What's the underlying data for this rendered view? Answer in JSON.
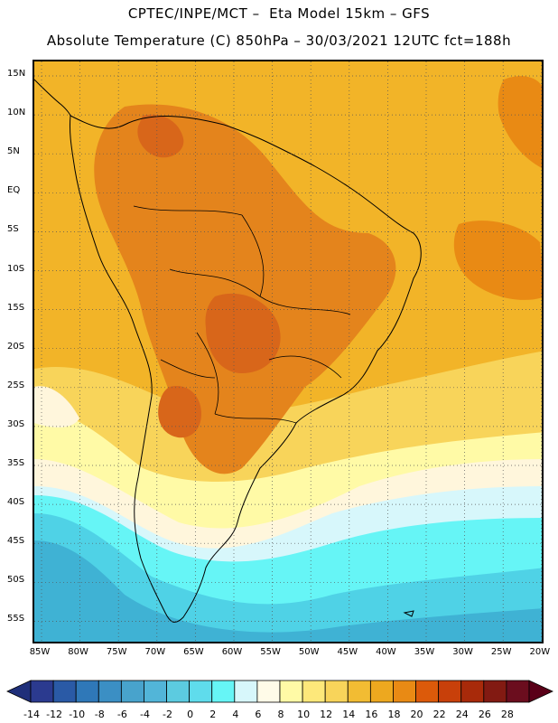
{
  "title_line1": "CPTEC/INPE/MCT –  Eta Model 15km – GFS",
  "title_line2": "Absolute Temperature (C) 850hPa – 30/03/2021 12UTC fct=188h",
  "lat_labels": [
    "15N",
    "10N",
    "5N",
    "EQ",
    "5S",
    "10S",
    "15S",
    "20S",
    "25S",
    "30S",
    "35S",
    "40S",
    "45S",
    "50S",
    "55S"
  ],
  "lon_labels": [
    "85W",
    "80W",
    "75W",
    "70W",
    "65W",
    "60W",
    "55W",
    "50W",
    "45W",
    "40W",
    "35W",
    "30W",
    "25W",
    "20W"
  ],
  "colorbar": {
    "ticks": [
      "-14",
      "-12",
      "-10",
      "-8",
      "-6",
      "-4",
      "-2",
      "0",
      "2",
      "4",
      "6",
      "8",
      "10",
      "12",
      "14",
      "16",
      "18",
      "20",
      "22",
      "24",
      "26",
      "28"
    ],
    "colors": [
      "#2b3a8f",
      "#2a5aa6",
      "#2f78b8",
      "#3b8fc4",
      "#48a3cc",
      "#52b5d8",
      "#5ccbe0",
      "#5fdcec",
      "#66f5f6",
      "#d7f7fb",
      "#fffbe8",
      "#fffaa6",
      "#fde87a",
      "#f8d45a",
      "#f2bc33",
      "#eda81f",
      "#e98a14",
      "#dc5a0a",
      "#c8400a",
      "#a82a0a",
      "#821a12",
      "#6b0d1e"
    ],
    "under_color": "#1f2f7a",
    "over_color": "#5a0018"
  },
  "map_colors": {
    "ocean_warm": "#f2b428",
    "land_hot": "#e4841c",
    "land_hotter": "#d8661a",
    "warm_yellow": "#f8d45a",
    "pale_yellow": "#fffaa6",
    "cream": "#fff6dc",
    "light_cyan": "#d7f7fb",
    "cyan": "#66f5f6",
    "blue_cyan": "#4fd2e6",
    "sky_blue": "#3fb2d4",
    "coast_line": "#000000"
  }
}
